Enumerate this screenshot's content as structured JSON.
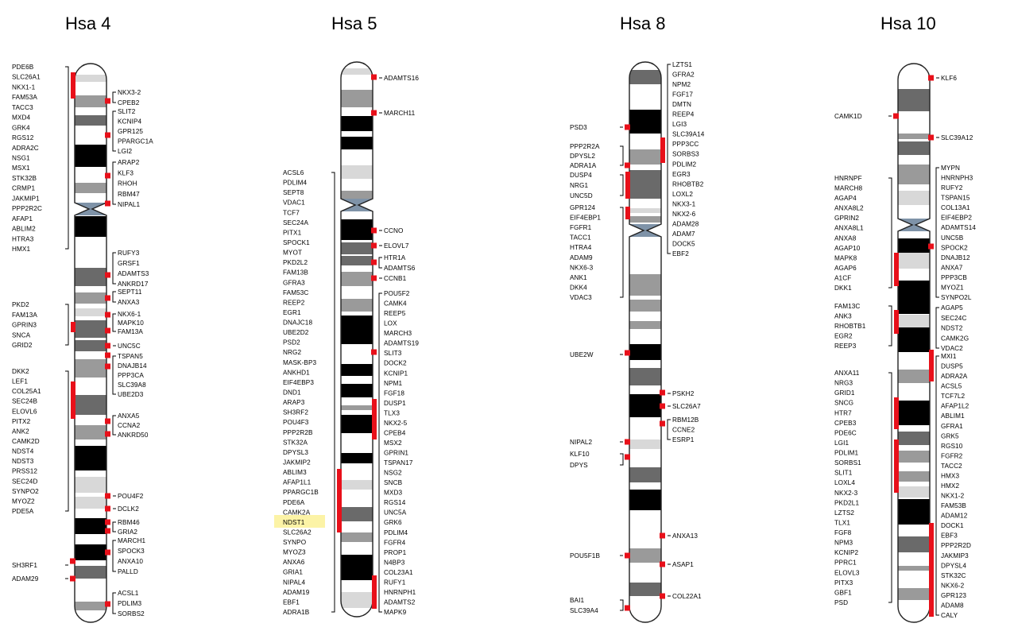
{
  "chromosomes": [
    {
      "id": "hsa4",
      "title": "Hsa 4",
      "colors": {
        "dark": "#000000",
        "mid": "#6a6a6a",
        "light": "#9a9a9a",
        "pale": "#d8d8d8",
        "centromere": "#7f93a8",
        "marker": "#e8101a"
      },
      "left_genes": [
        "PDE6B",
        "SLC26A1",
        "NKX1-1",
        "FAM53A",
        "TACC3",
        "MXD4",
        "GRK4",
        "RGS12",
        "ADRA2C",
        "NSG1",
        "MSX1",
        "STK32B",
        "CRMP1",
        "JAKMIP1",
        "PPP2R2C",
        "AFAP1",
        "ABLIM2",
        "HTRA3",
        "HMX1",
        "PKD2",
        "FAM13A",
        "GPRIN3",
        "SNCA",
        "GRID2",
        "DKK2",
        "LEF1",
        "COL25A1",
        "SEC24B",
        "ELOVL6",
        "PITX2",
        "ANK2",
        "CAMK2D",
        "NDST4",
        "NDST3",
        "PRSS12",
        "SEC24D",
        "SYNPO2",
        "MYOZ2",
        "PDE5A",
        "SH3RF1",
        "ADAM29"
      ],
      "right_genes": [
        "NKX3-2",
        "CPEB2",
        "SLIT2",
        "KCNIP4",
        "GPR125",
        "PPARGC1A",
        "LGI2",
        "ARAP2",
        "KLF3",
        "RHOH",
        "RBM47",
        "NIPAL1",
        "RUFY3",
        "GRSF1",
        "ADAMTS3",
        "ANKRD17",
        "SEPT11",
        "ANXA3",
        "NKX6-1",
        "MAPK10",
        "FAM13A",
        "UNC5C",
        "TSPAN5",
        "DNAJB14",
        "PPP3CA",
        "SLC39A8",
        "UBE2D3",
        "ANXA5",
        "CCNA2",
        "ANKRD50",
        "POU4F2",
        "DCLK2",
        "RBM46",
        "GRIA2",
        "MARCH1",
        "SPOCK3",
        "ANXA10",
        "PALLD",
        "ACSL1",
        "PDLIM3",
        "SORBS2"
      ]
    },
    {
      "id": "hsa5",
      "title": "Hsa 5",
      "left_genes": [
        "ACSL6",
        "PDLIM4",
        "SEPT8",
        "VDAC1",
        "TCF7",
        "SEC24A",
        "PITX1",
        "SPOCK1",
        "MYOT",
        "PKD2L2",
        "FAM13B",
        "GFRA3",
        "FAM53C",
        "REEP2",
        "EGR1",
        "DNAJC18",
        "UBE2D2",
        "PSD2",
        "NRG2",
        "MASK-BP3",
        "ANKHD1",
        "EIF4EBP3",
        "DND1",
        "ARAP3",
        "SH3RF2",
        "POU4F3",
        "PPP2R2B",
        "STK32A",
        "DPYSL3",
        "JAKMIP2",
        "ABLIM3",
        "AFAP1L1",
        "PPARGC1B",
        "PDE6A",
        "CAMK2A",
        "NDST1",
        "SLC26A2",
        "SYNPO",
        "MYOZ3",
        "ANXA6",
        "GRIA1",
        "NIPAL4",
        "ADAM19",
        "EBF1",
        "ADRA1B"
      ],
      "right_genes": [
        "ADAMTS16",
        "MARCH11",
        "CCNO",
        "ELOVL7",
        "HTR1A",
        "ADAMTS6",
        "CCNB1",
        "POU5F2",
        "CAMK4",
        "REEP5",
        "LOX",
        "MARCH3",
        "ADAMTS19",
        "SLIT3",
        "DOCK2",
        "KCNIP1",
        "NPM1",
        "FGF18",
        "DUSP1",
        "TLX3",
        "NKX2-5",
        "CPEB4",
        "MSX2",
        "GPRIN1",
        "TSPAN17",
        "NSG2",
        "SNCB",
        "MXD3",
        "RGS14",
        "UNC5A",
        "GRK6",
        "PDLIM4",
        "FGFR4",
        "PROP1",
        "N4BP3",
        "COL23A1",
        "RUFY1",
        "HNRNPH1",
        "ADAMTS2",
        "MAPK9"
      ]
    },
    {
      "id": "hsa8",
      "title": "Hsa 8",
      "left_genes": [
        "PSD3",
        "PPP2R2A",
        "DPYSL2",
        "ADRA1A",
        "DUSP4",
        "NRG1",
        "UNC5D",
        "GPR124",
        "EIF4EBP1",
        "FGFR1",
        "TACC1",
        "HTRA4",
        "ADAM9",
        "NKX6-3",
        "ANK1",
        "DKK4",
        "VDAC3",
        "UBE2W",
        "NIPAL2",
        "KLF10",
        "DPYS",
        "POU5F1B",
        "BAI1",
        "SLC39A4"
      ],
      "right_genes": [
        "LZTS1",
        "GFRA2",
        "NPM2",
        "FGF17",
        "DMTN",
        "REEP4",
        "LGI3",
        "SLC39A14",
        "PPP3CC",
        "SORBS3",
        "PDLIM2",
        "EGR3",
        "RHOBTB2",
        "LOXL2",
        "NKX3-1",
        "NKX2-6",
        "ADAM28",
        "ADAM7",
        "DOCK5",
        "EBF2",
        "PSKH2",
        "SLC26A7",
        "RBM12B",
        "CCNE2",
        "ESRP1",
        "ANXA13",
        "ASAP1",
        "COL22A1"
      ]
    },
    {
      "id": "hsa10",
      "title": "Hsa 10",
      "left_genes": [
        "CAMK1D",
        "HNRNPF",
        "MARCH8",
        "AGAP4",
        "ANXA8L2",
        "GPRIN2",
        "ANXA8L1",
        "ANXA8",
        "AGAP10",
        "MAPK8",
        "AGAP6",
        "A1CF",
        "DKK1",
        "FAM13C",
        "ANK3",
        "RHOBTB1",
        "EGR2",
        "REEP3",
        "ANXA11",
        "NRG3",
        "GRID1",
        "SNCG",
        "HTR7",
        "CPEB3",
        "PDE6C",
        "LGI1",
        "PDLIM1",
        "SORBS1",
        "SLIT1",
        "LOXL4",
        "NKX2-3",
        "PKD2L1",
        "LZTS2",
        "TLX1",
        "FGF8",
        "NPM3",
        "KCNIP2",
        "PPRC1",
        "ELOVL3",
        "PITX3",
        "GBF1",
        "PSD"
      ],
      "right_genes": [
        "KLF6",
        "SLC39A12",
        "MYPN",
        "HNRNPH3",
        "RUFY2",
        "TSPAN15",
        "COL13A1",
        "EIF4EBP2",
        "ADAMTS14",
        "UNC5B",
        "SPOCK2",
        "DNAJB12",
        "ANXA7",
        "PPP3CB",
        "MYOZ1",
        "SYNPO2L",
        "AGAP5",
        "SEC24C",
        "NDST2",
        "CAMK2G",
        "VDAC2",
        "MXI1",
        "DUSP5",
        "ADRA2A",
        "ACSL5",
        "TCF7L2",
        "AFAP1L2",
        "ABLIM1",
        "GFRA1",
        "GRK5",
        "RGS10",
        "FGFR2",
        "TACC2",
        "HMX3",
        "HMX2",
        "NKX1-2",
        "FAM53B",
        "ADAM12",
        "DOCK1",
        "EBF3",
        "PPP2R2D",
        "JAKMIP3",
        "DPYSL4",
        "STK32C",
        "NKX6-2",
        "GPR123",
        "ADAM8",
        "CALY"
      ]
    }
  ]
}
